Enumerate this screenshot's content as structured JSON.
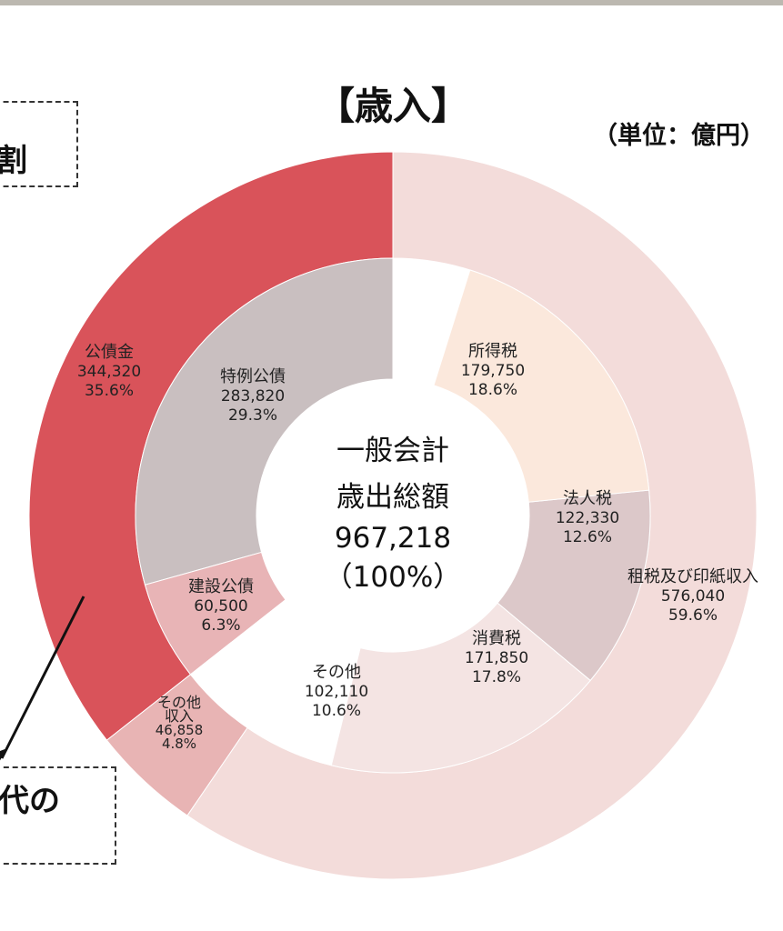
{
  "title": "【歳入】",
  "unit": "（単位：億円）",
  "callouts": {
    "top": "割",
    "bottom": "代の"
  },
  "chart_data": {
    "type": "pie",
    "center_label": [
      "一般会計",
      "歳出総額",
      "967,218",
      "（100%）"
    ],
    "total": 967218,
    "outer_ring": [
      {
        "name": "公債金",
        "value_label": "344,320",
        "pct_label": "35.6%",
        "value": 344320,
        "color": "#d9535a"
      },
      {
        "name": "その他\n収入",
        "value_label": "46,858",
        "pct_label": "4.8%",
        "value": 46858,
        "color": "#e8b4b4"
      },
      {
        "name": "租税及び印紙収入",
        "value_label": "576,040",
        "pct_label": "59.6%",
        "value": 576040,
        "color": "#f3dcda"
      }
    ],
    "inner_ring": [
      {
        "name": "特例公債",
        "value_label": "283,820",
        "pct_label": "29.3%",
        "value": 283820,
        "color": "#c9bfc0"
      },
      {
        "name": "建設公債",
        "value_label": "60,500",
        "pct_label": "6.3%",
        "value": 60500,
        "color": "#e8b4b6"
      },
      {
        "name": "その他",
        "value_label": "102,110",
        "pct_label": "10.6%",
        "value": 102110,
        "color": "#ffffff"
      },
      {
        "name": "消費税",
        "value_label": "171,850",
        "pct_label": "17.8%",
        "value": 171850,
        "color": "#f4e4e3"
      },
      {
        "name": "法人税",
        "value_label": "122,330",
        "pct_label": "12.6%",
        "value": 122330,
        "color": "#dcc8c9"
      },
      {
        "name": "所得税",
        "value_label": "179,750",
        "pct_label": "18.6%",
        "value": 179750,
        "color": "#fbe8dc"
      }
    ],
    "text_color": "#222222"
  }
}
